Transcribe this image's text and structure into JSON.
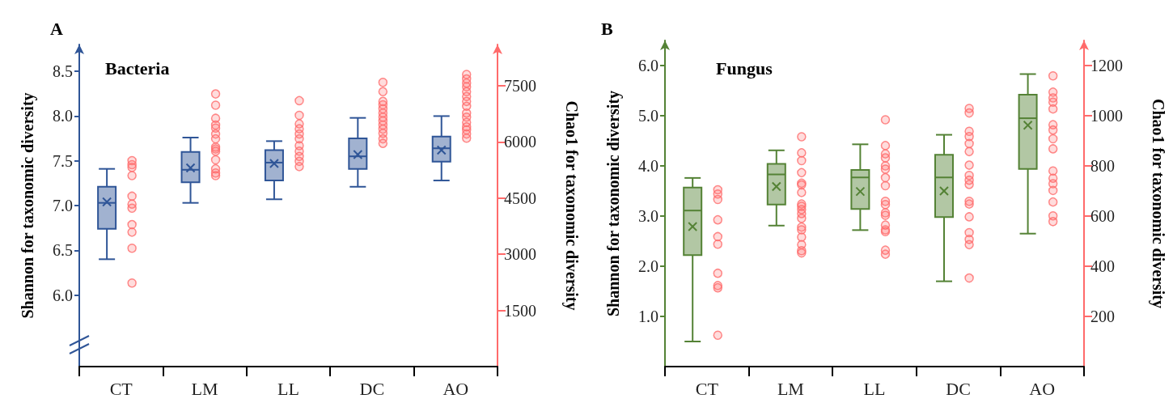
{
  "chart_data": [
    {
      "type": "box",
      "title": "Bacteria",
      "annotations": [
        "A"
      ],
      "ylabel": "Shannon for taxonomic diversity",
      "y2label": "Chao1 for taxonomic diversity",
      "categories": [
        "CT",
        "LM",
        "LL",
        "DC",
        "AO"
      ],
      "ylim": [
        5.2,
        8.8
      ],
      "yticks": [
        {
          "value": 6,
          "label": "6.0"
        },
        {
          "value": 6.5,
          "label": "6.5"
        },
        {
          "value": 7,
          "label": "7.0"
        },
        {
          "value": 7.5,
          "label": "7.5"
        },
        {
          "value": 8,
          "label": "8.0"
        },
        {
          "value": 8.5,
          "label": "8.5"
        }
      ],
      "y2lim": [
        0,
        8600
      ],
      "y2ticks": [
        1500,
        3000,
        4500,
        6000,
        7500
      ],
      "grid": false,
      "series": [
        {
          "color": "#2f5597",
          "boxes": [
            {
              "low": 6.4,
              "q1": 6.74,
              "median": 7.03,
              "q3": 7.21,
              "high": 7.41,
              "mean": 7.04
            },
            {
              "low": 7.03,
              "q1": 7.26,
              "median": 7.4,
              "q3": 7.6,
              "high": 7.76,
              "mean": 7.42
            },
            {
              "low": 7.07,
              "q1": 7.28,
              "median": 7.48,
              "q3": 7.62,
              "high": 7.72,
              "mean": 7.47
            },
            {
              "low": 7.21,
              "q1": 7.41,
              "median": 7.55,
              "q3": 7.75,
              "high": 7.98,
              "mean": 7.57
            },
            {
              "low": 7.28,
              "q1": 7.49,
              "median": 7.64,
              "q3": 7.77,
              "high": 8.0,
              "mean": 7.62
            }
          ]
        },
        {
          "type": "scatter",
          "axis": "y2",
          "color": "#ff6b6b",
          "marker": "circle",
          "x": [
            "CT",
            "CT",
            "CT",
            "CT",
            "CT",
            "CT",
            "CT",
            "CT",
            "CT",
            "CT",
            "CT",
            "LM",
            "LM",
            "LM",
            "LM",
            "LM",
            "LM",
            "LM",
            "LM",
            "LM",
            "LM",
            "LM",
            "LM",
            "LM",
            "LM",
            "LL",
            "LL",
            "LL",
            "LL",
            "LL",
            "LL",
            "LL",
            "LL",
            "LL",
            "LL",
            "LL",
            "DC",
            "DC",
            "DC",
            "DC",
            "DC",
            "DC",
            "DC",
            "DC",
            "DC",
            "DC",
            "DC",
            "DC",
            "DC",
            "AO",
            "AO",
            "AO",
            "AO",
            "AO",
            "AO",
            "AO",
            "AO",
            "AO",
            "AO",
            "AO",
            "AO",
            "AO",
            "AO",
            "AO"
          ],
          "values": [
            5500,
            5390,
            5320,
            5100,
            4550,
            4340,
            4230,
            3790,
            3590,
            3160,
            2230,
            7280,
            6980,
            6630,
            6450,
            6370,
            6210,
            6080,
            5860,
            5810,
            5750,
            5520,
            5280,
            5170,
            5100,
            7100,
            6710,
            6480,
            6350,
            6210,
            6080,
            5900,
            5750,
            5610,
            5480,
            5340,
            7590,
            7340,
            7080,
            6990,
            6880,
            6770,
            6660,
            6560,
            6450,
            6340,
            6230,
            6080,
            5960,
            7800,
            7680,
            7570,
            7470,
            7340,
            7210,
            7080,
            6950,
            6770,
            6660,
            6520,
            6400,
            6320,
            6210,
            6100
          ]
        }
      ]
    },
    {
      "type": "box",
      "title": "Fungus",
      "annotations": [
        "B"
      ],
      "ylabel": "Shannon for taxonomic diversity",
      "y2label": "Chao1 for taxonomic diversity",
      "categories": [
        "CT",
        "LM",
        "LL",
        "DC",
        "AO"
      ],
      "ylim": [
        0,
        6.5
      ],
      "yticks": [
        {
          "value": 1,
          "label": "1.0"
        },
        {
          "value": 2,
          "label": "2.0"
        },
        {
          "value": 3,
          "label": "3.0"
        },
        {
          "value": 4,
          "label": "4.0"
        },
        {
          "value": 5,
          "label": "5.0"
        },
        {
          "value": 6,
          "label": "6.0"
        }
      ],
      "y2lim": [
        0,
        1300
      ],
      "y2ticks": [
        200,
        400,
        600,
        800,
        1000,
        1200
      ],
      "grid": false,
      "series": [
        {
          "color": "#548235",
          "boxes": [
            {
              "low": 0.5,
              "q1": 2.22,
              "median": 3.11,
              "q3": 3.57,
              "high": 3.76,
              "mean": 2.79
            },
            {
              "low": 2.81,
              "q1": 3.23,
              "median": 3.83,
              "q3": 4.04,
              "high": 4.31,
              "mean": 3.59
            },
            {
              "low": 2.72,
              "q1": 3.14,
              "median": 3.77,
              "q3": 3.92,
              "high": 4.43,
              "mean": 3.49
            },
            {
              "low": 1.7,
              "q1": 2.98,
              "median": 3.77,
              "q3": 4.22,
              "high": 4.62,
              "mean": 3.5
            },
            {
              "low": 2.65,
              "q1": 3.94,
              "median": 4.95,
              "q3": 5.42,
              "high": 5.83,
              "mean": 4.81
            }
          ]
        },
        {
          "type": "scatter",
          "axis": "y2",
          "color": "#ff6b6b",
          "marker": "circle",
          "x": [
            "CT",
            "CT",
            "CT",
            "CT",
            "CT",
            "CT",
            "CT",
            "CT",
            "CT",
            "CT",
            "LM",
            "LM",
            "LM",
            "LM",
            "LM",
            "LM",
            "LM",
            "LM",
            "LM",
            "LM",
            "LM",
            "LM",
            "LM",
            "LM",
            "LM",
            "LM",
            "LM",
            "LM",
            "LL",
            "LL",
            "LL",
            "LL",
            "LL",
            "LL",
            "LL",
            "LL",
            "LL",
            "LL",
            "LL",
            "LL",
            "LL",
            "LL",
            "LL",
            "LL",
            "LL",
            "DC",
            "DC",
            "DC",
            "DC",
            "DC",
            "DC",
            "DC",
            "DC",
            "DC",
            "DC",
            "DC",
            "DC",
            "DC",
            "DC",
            "DC",
            "DC",
            "DC",
            "AO",
            "AO",
            "AO",
            "AO",
            "AO",
            "AO",
            "AO",
            "AO",
            "AO",
            "AO",
            "AO",
            "AO",
            "AO",
            "AO",
            "AO",
            "AO"
          ],
          "values": [
            705,
            688,
            666,
            585,
            518,
            488,
            372,
            323,
            314,
            125,
            916,
            852,
            821,
            773,
            731,
            724,
            694,
            648,
            639,
            626,
            610,
            591,
            556,
            545,
            516,
            486,
            462,
            453,
            984,
            881,
            848,
            832,
            800,
            787,
            753,
            721,
            659,
            646,
            613,
            603,
            564,
            545,
            538,
            464,
            448,
            1029,
            1011,
            938,
            917,
            889,
            857,
            803,
            762,
            743,
            726,
            659,
            648,
            597,
            534,
            507,
            486,
            353,
            1159,
            1094,
            1071,
            1054,
            1027,
            964,
            943,
            908,
            868,
            780,
            751,
            729,
            702,
            656,
            601,
            578
          ]
        }
      ]
    }
  ]
}
